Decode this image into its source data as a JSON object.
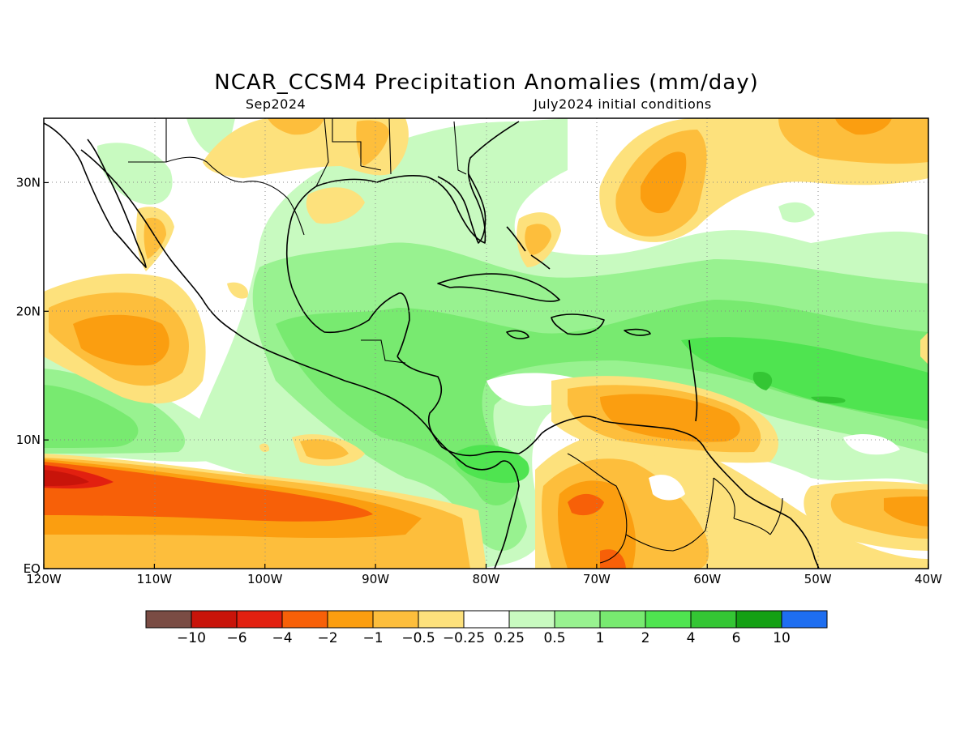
{
  "title": "NCAR_CCSM4 Precipitation Anomalies (mm/day)",
  "subtitle_left": "Sep2024",
  "subtitle_right": "July2024 initial conditions",
  "axes": {
    "x_ticks": [
      "120W",
      "110W",
      "100W",
      "90W",
      "80W",
      "70W",
      "60W",
      "50W",
      "40W"
    ],
    "y_ticks": [
      "EQ",
      "10N",
      "20N",
      "30N"
    ],
    "lon_range": [
      -120,
      -40
    ],
    "lat_range": [
      0,
      35
    ],
    "grid": true
  },
  "legend": {
    "colors": [
      "#7a4c44",
      "#c8140a",
      "#e22010",
      "#f76008",
      "#fb9e10",
      "#fdbe3c",
      "#fde17c",
      "#ffffff",
      "#c8fac0",
      "#98f290",
      "#78ea70",
      "#4fe450",
      "#34c634",
      "#14a014",
      "#1e6ef0"
    ],
    "labels": [
      "−10",
      "−6",
      "−4",
      "−2",
      "−1",
      "−0.5",
      "−0.25",
      "0.25",
      "0.5",
      "1",
      "2",
      "4",
      "6",
      "10"
    ]
  }
}
